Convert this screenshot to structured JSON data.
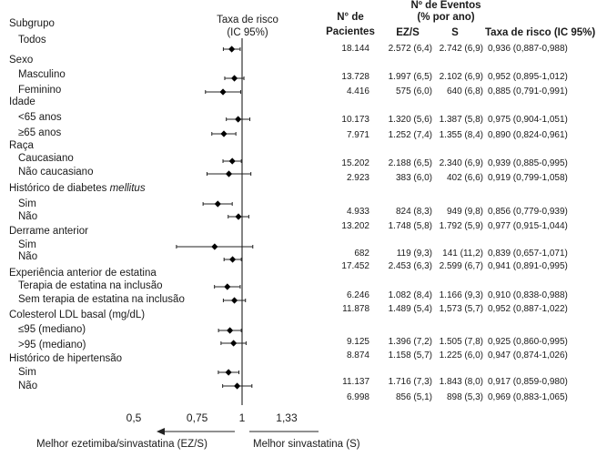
{
  "labels": {
    "subgroup_header": "Subgrupo",
    "plot_title_line1": "Taxa de risco",
    "plot_title_line2": "(IC 95%)",
    "patients_header_line1": "N°  de",
    "patients_header_line2": "Pacientes",
    "events_header_line1": "Nº de Eventos",
    "events_header_line2": "(% por ano)",
    "ezs_header": "EZ/S",
    "s_header": "S",
    "hr_header": "Taxa de risco (IC 95%)",
    "favors_left": "Melhor ezetimiba/sinvastatina (EZ/S)",
    "favors_right": "Melhor sinvastatina (S)"
  },
  "colors": {
    "marker": "#000000",
    "line": "#222222",
    "refline": "#333333"
  },
  "subgroup_rows": [
    {
      "text": "Subgrupo",
      "indent": 0
    },
    {
      "text": "Todos",
      "indent": 1
    },
    {
      "text": "Sexo",
      "indent": 0
    },
    {
      "text": "Masculino",
      "indent": 1
    },
    {
      "text": "Feminino",
      "indent": 1
    },
    {
      "text": "Idade",
      "indent": 0
    },
    {
      "text": "<65 anos",
      "indent": 1
    },
    {
      "text": "≥65 anos",
      "indent": 1
    },
    {
      "text": "Raça",
      "indent": 0
    },
    {
      "text": "Caucasiano",
      "indent": 1
    },
    {
      "text": "Não caucasiano",
      "indent": 1
    },
    {
      "text": "Histórico de diabetes ",
      "italic": "mellitus",
      "indent": 0
    },
    {
      "text": "Sim",
      "indent": 1
    },
    {
      "text": "Não",
      "indent": 1
    },
    {
      "text": "Derrame anterior",
      "indent": 0
    },
    {
      "text": "Sim",
      "indent": 1
    },
    {
      "text": "Não",
      "indent": 1
    },
    {
      "text": "Experiência anterior de estatina",
      "indent": 0
    },
    {
      "text": "Terapia de estatina na inclusão",
      "indent": 1
    },
    {
      "text": "Sem terapia de estatina na inclusão",
      "indent": 1
    },
    {
      "text": "Colesterol LDL basal (mg/dL)",
      "indent": 0
    },
    {
      "text": "≤95 (mediano)",
      "indent": 1
    },
    {
      "text": ">95 (mediano)",
      "indent": 1
    },
    {
      "text": "Histórico de hipertensão",
      "indent": 0
    },
    {
      "text": "Sim",
      "indent": 1
    },
    {
      "text": "Não",
      "indent": 1
    }
  ],
  "table_rows": [
    {
      "n": "18.144",
      "ezs": "2.572 (6,4)",
      "s": "2.742 (6,9)",
      "hr": "0,936 (0,887-0,988)"
    },
    {
      "n": "13.728",
      "ezs": "1.997 (6,5)",
      "s": "2.102 (6,9)",
      "hr": "0,952 (0,895-1,012)"
    },
    {
      "n": "4.416",
      "ezs": "575 (6,0)",
      "s": "640 (6,8)",
      "hr": "0,885 (0,791-0,991)"
    },
    {
      "n": "10.173",
      "ezs": "1.320 (5,6)",
      "s": "1.387 (5,8)",
      "hr": "0,975 (0,904-1,051)"
    },
    {
      "n": "7.971",
      "ezs": "1.252 (7,4)",
      "s": "1.355 (8,4)",
      "hr": "0,890 (0,824-0,961)"
    },
    {
      "n": "15.202",
      "ezs": "2.188 (6,5)",
      "s": "2.340 (6,9)",
      "hr": "0,939 (0,885-0,995)"
    },
    {
      "n": "2.923",
      "ezs": "383 (6,0)",
      "s": "402 (6,6)",
      "hr": "0,919 (0,799-1,058)"
    },
    {
      "n": "4.933",
      "ezs": "824 (8,3)",
      "s": "949 (9,8)",
      "hr": "0,856 (0,779-0,939)"
    },
    {
      "n": "13.202",
      "ezs": "1.748 (5,8)",
      "s": "1.792 (5,9)",
      "hr": "0,977 (0,915-1,044)"
    },
    {
      "n": "682",
      "ezs": "119 (9,3)",
      "s": "141 (11,2)",
      "hr": "0,839 (0,657-1,071)"
    },
    {
      "n": "17.452",
      "ezs": "2.453 (6,3)",
      "s": "2.599 (6,7)",
      "hr": "0,941 (0,891-0,995)"
    },
    {
      "n": "6.246",
      "ezs": "1.082 (8,4)",
      "s": "1.166 (9,3)",
      "hr": "0,910 (0,838-0,988)"
    },
    {
      "n": "11.878",
      "ezs": "1.489 (5,4)",
      "s": "1,573 (5,7)",
      "hr": "0,952 (0,887-1,022)"
    },
    {
      "n": "9.125",
      "ezs": "1.396 (7,2)",
      "s": "1.505 (7,8)",
      "hr": "0,925 (0,860-0,995)"
    },
    {
      "n": "8.874",
      "ezs": "1.158 (5,7)",
      "s": "1.225 (6,0)",
      "hr": "0,947 (0,874-1,026)"
    },
    {
      "n": "11.137",
      "ezs": "1.716 (7,3)",
      "s": "1.843 (8,0)",
      "hr": "0,917 (0,859-0,980)"
    },
    {
      "n": "6.998",
      "ezs": "856 (5,1)",
      "s": "898 (5,3)",
      "hr": "0,969 (0,883-1,065)"
    }
  ],
  "chart_data": {
    "type": "forest",
    "x_scale": "log",
    "xlim": [
      0.5,
      1.33
    ],
    "x_ticks": [
      {
        "value": 0.5,
        "label": "0,5"
      },
      {
        "value": 0.75,
        "label": "0,75"
      },
      {
        "value": 1,
        "label": "1"
      },
      {
        "value": 1.33,
        "label": "1,33"
      }
    ],
    "reference_line": 1,
    "points": [
      {
        "subgroup": "Todos",
        "hr": 0.936,
        "lo": 0.887,
        "hi": 0.988
      },
      {
        "subgroup": "Masculino",
        "hr": 0.952,
        "lo": 0.895,
        "hi": 1.012
      },
      {
        "subgroup": "Feminino",
        "hr": 0.885,
        "lo": 0.791,
        "hi": 0.991
      },
      {
        "subgroup": "<65 anos",
        "hr": 0.975,
        "lo": 0.904,
        "hi": 1.051
      },
      {
        "subgroup": "≥65 anos",
        "hr": 0.89,
        "lo": 0.824,
        "hi": 0.961
      },
      {
        "subgroup": "Caucasiano",
        "hr": 0.939,
        "lo": 0.885,
        "hi": 0.995
      },
      {
        "subgroup": "Não caucasiano",
        "hr": 0.919,
        "lo": 0.799,
        "hi": 1.058
      },
      {
        "subgroup": "Diabetes Sim",
        "hr": 0.856,
        "lo": 0.779,
        "hi": 0.939
      },
      {
        "subgroup": "Diabetes Não",
        "hr": 0.977,
        "lo": 0.915,
        "hi": 1.044
      },
      {
        "subgroup": "Derrame Sim",
        "hr": 0.839,
        "lo": 0.657,
        "hi": 1.071
      },
      {
        "subgroup": "Derrame Não",
        "hr": 0.941,
        "lo": 0.891,
        "hi": 0.995
      },
      {
        "subgroup": "Terapia de estatina na inclusão",
        "hr": 0.91,
        "lo": 0.838,
        "hi": 0.988
      },
      {
        "subgroup": "Sem terapia de estatina na inclusão",
        "hr": 0.952,
        "lo": 0.887,
        "hi": 1.022
      },
      {
        "subgroup": "≤95 (mediano)",
        "hr": 0.925,
        "lo": 0.86,
        "hi": 0.995
      },
      {
        "subgroup": ">95 (mediano)",
        "hr": 0.947,
        "lo": 0.874,
        "hi": 1.026
      },
      {
        "subgroup": "Hipertensão Sim",
        "hr": 0.917,
        "lo": 0.859,
        "hi": 0.98
      },
      {
        "subgroup": "Hipertensão Não",
        "hr": 0.969,
        "lo": 0.883,
        "hi": 1.065
      }
    ]
  }
}
